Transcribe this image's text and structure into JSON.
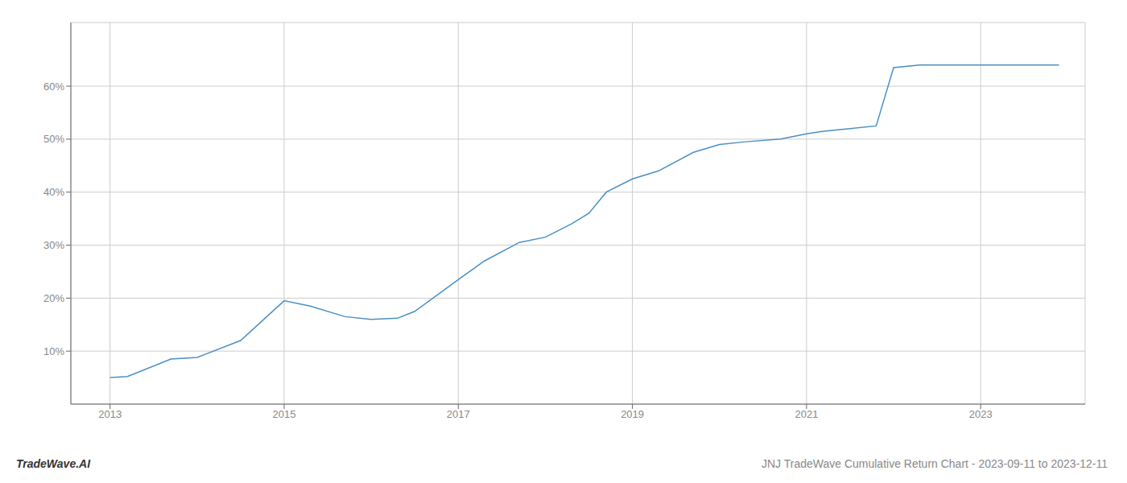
{
  "chart_data": {
    "type": "line",
    "annotations": [
      "TradeWave.AI",
      "JNJ TradeWave Cumulative Return Chart - 2023-09-11 to 2023-12-11"
    ],
    "x": [
      2013.0,
      2013.2,
      2013.7,
      2014.0,
      2014.5,
      2015.0,
      2015.3,
      2015.7,
      2016.0,
      2016.3,
      2016.5,
      2017.0,
      2017.3,
      2017.7,
      2018.0,
      2018.3,
      2018.5,
      2018.7,
      2019.0,
      2019.3,
      2019.7,
      2020.0,
      2020.3,
      2020.7,
      2021.0,
      2021.2,
      2021.5,
      2021.8,
      2022.0,
      2022.3,
      2022.5,
      2022.7,
      2023.0,
      2023.5,
      2023.9
    ],
    "values": [
      5.0,
      5.2,
      8.5,
      8.8,
      12.0,
      19.5,
      18.5,
      16.5,
      16.0,
      16.2,
      17.5,
      23.5,
      27.0,
      30.5,
      31.5,
      34.0,
      36.0,
      40.0,
      42.5,
      44.0,
      47.5,
      49.0,
      49.5,
      50.0,
      51.0,
      51.5,
      52.0,
      52.5,
      63.5,
      64.0,
      64.0,
      64.0,
      64.0,
      64.0,
      64.0
    ],
    "color": "#4a90c4",
    "xlim": [
      2012.55,
      2024.2
    ],
    "xticks": [
      2013,
      2015,
      2017,
      2019,
      2021,
      2023
    ],
    "ylim": [
      0,
      72
    ],
    "yticks": [
      {
        "value": 10,
        "label": "10%"
      },
      {
        "value": 20,
        "label": "20%"
      },
      {
        "value": 30,
        "label": "30%"
      },
      {
        "value": 40,
        "label": "40%"
      },
      {
        "value": 50,
        "label": "50%"
      },
      {
        "value": 60,
        "label": "60%"
      }
    ],
    "grid": true
  }
}
